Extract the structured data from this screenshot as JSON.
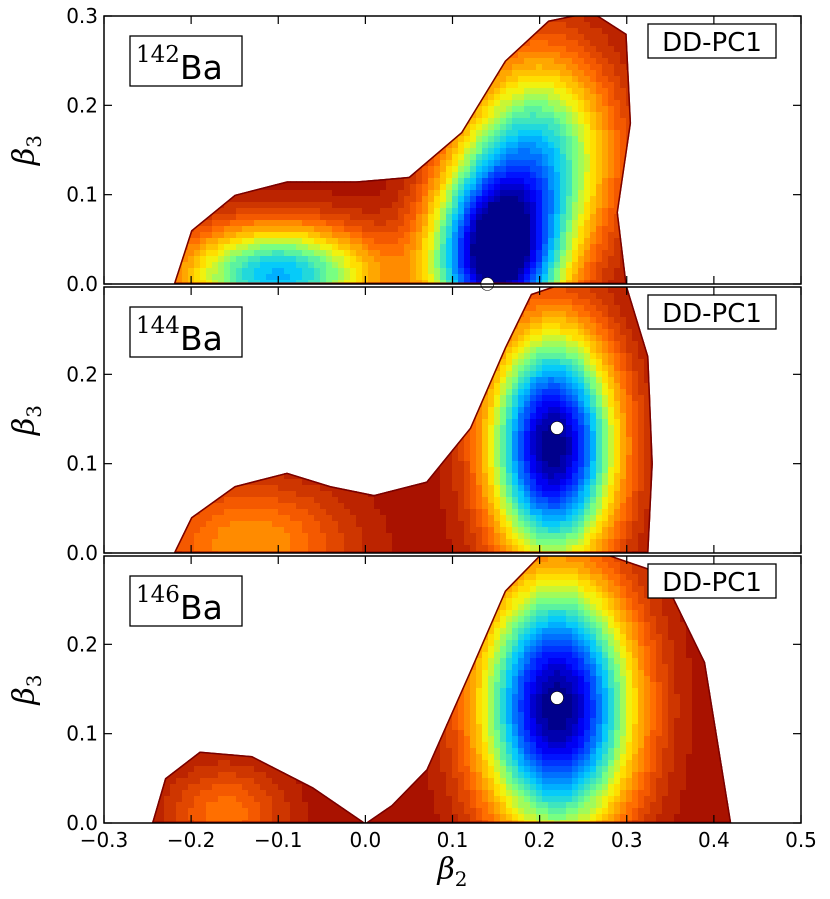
{
  "chart_data": [
    {
      "type": "contour",
      "nucleus_mass": "142",
      "nucleus_element": "Ba",
      "model_label": "DD-PC1",
      "xlabel": "β2",
      "ylabel": "β3",
      "xlim": [
        -0.3,
        0.5
      ],
      "ylim": [
        0.0,
        0.3
      ],
      "ytick_labels": [
        "0.0",
        "0.1",
        "0.2",
        "0.3"
      ],
      "minimum": {
        "x": 0.14,
        "y": 0.0
      },
      "colormap": "jet",
      "surface": {
        "wells": [
          {
            "x": 0.15,
            "y": 0.03,
            "depth": 1.0,
            "sx": 0.05,
            "sy": 0.07
          },
          {
            "x": -0.1,
            "y": 0.01,
            "depth": 0.65,
            "sx": 0.08,
            "sy": 0.04
          },
          {
            "x": 0.2,
            "y": 0.15,
            "depth": 0.55,
            "sx": 0.06,
            "sy": 0.08
          }
        ],
        "outline": [
          [
            -0.22,
            0.0
          ],
          [
            -0.2,
            0.06
          ],
          [
            -0.15,
            0.1
          ],
          [
            -0.09,
            0.115
          ],
          [
            -0.01,
            0.115
          ],
          [
            0.05,
            0.12
          ],
          [
            0.11,
            0.17
          ],
          [
            0.16,
            0.25
          ],
          [
            0.21,
            0.295
          ],
          [
            0.26,
            0.305
          ],
          [
            0.3,
            0.28
          ],
          [
            0.305,
            0.18
          ],
          [
            0.29,
            0.08
          ],
          [
            0.3,
            0.0
          ]
        ]
      }
    },
    {
      "type": "contour",
      "nucleus_mass": "144",
      "nucleus_element": "Ba",
      "model_label": "DD-PC1",
      "xlabel": "β2",
      "ylabel": "β3",
      "xlim": [
        -0.3,
        0.5
      ],
      "ylim": [
        0.0,
        0.3
      ],
      "ytick_labels": [
        "0.0",
        "0.1",
        "0.2"
      ],
      "minimum": {
        "x": 0.22,
        "y": 0.14
      },
      "colormap": "jet",
      "surface": {
        "wells": [
          {
            "x": 0.215,
            "y": 0.12,
            "depth": 1.0,
            "sx": 0.05,
            "sy": 0.09
          },
          {
            "x": -0.13,
            "y": 0.01,
            "depth": 0.25,
            "sx": 0.08,
            "sy": 0.05
          }
        ],
        "outline": [
          [
            -0.22,
            0.0
          ],
          [
            -0.2,
            0.04
          ],
          [
            -0.15,
            0.075
          ],
          [
            -0.09,
            0.09
          ],
          [
            -0.04,
            0.075
          ],
          [
            0.01,
            0.065
          ],
          [
            0.07,
            0.08
          ],
          [
            0.12,
            0.14
          ],
          [
            0.16,
            0.23
          ],
          [
            0.19,
            0.29
          ],
          [
            0.25,
            0.31
          ],
          [
            0.3,
            0.3
          ],
          [
            0.325,
            0.22
          ],
          [
            0.33,
            0.1
          ],
          [
            0.325,
            0.0
          ]
        ]
      }
    },
    {
      "type": "contour",
      "nucleus_mass": "146",
      "nucleus_element": "Ba",
      "model_label": "DD-PC1",
      "xlabel": "β2",
      "ylabel": "β3",
      "xlim": [
        -0.3,
        0.5
      ],
      "ylim": [
        0.0,
        0.3
      ],
      "xtick_labels": [
        "−0.3",
        "−0.2",
        "−0.1",
        "0.0",
        "0.1",
        "0.2",
        "0.3",
        "0.4",
        "0.5"
      ],
      "ytick_labels": [
        "0.0",
        "0.1",
        "0.2"
      ],
      "minimum": {
        "x": 0.22,
        "y": 0.14
      },
      "colormap": "jet",
      "surface": {
        "wells": [
          {
            "x": 0.22,
            "y": 0.13,
            "depth": 1.0,
            "sx": 0.06,
            "sy": 0.1
          },
          {
            "x": -0.16,
            "y": 0.01,
            "depth": 0.2,
            "sx": 0.05,
            "sy": 0.04
          }
        ],
        "outline": [
          [
            -0.245,
            0.0
          ],
          [
            -0.23,
            0.05
          ],
          [
            -0.19,
            0.08
          ],
          [
            -0.13,
            0.075
          ],
          [
            -0.06,
            0.04
          ],
          [
            0.0,
            0.0
          ],
          [
            0.03,
            0.02
          ],
          [
            0.07,
            0.06
          ],
          [
            0.12,
            0.17
          ],
          [
            0.16,
            0.26
          ],
          [
            0.2,
            0.3
          ],
          [
            0.28,
            0.3
          ],
          [
            0.34,
            0.28
          ],
          [
            0.39,
            0.18
          ],
          [
            0.42,
            0.0
          ]
        ]
      }
    }
  ]
}
